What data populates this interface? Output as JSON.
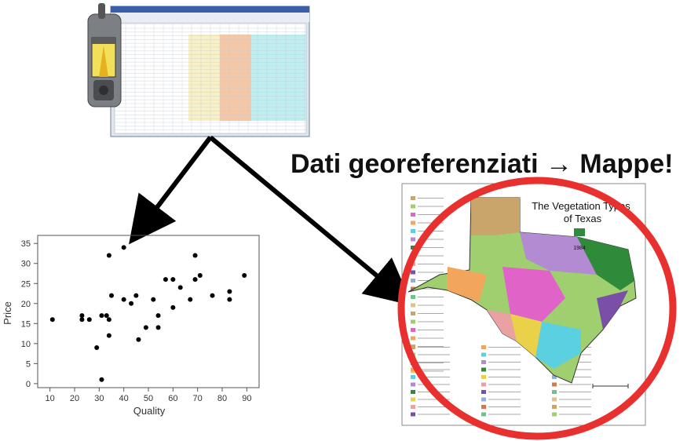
{
  "caption": "Dati georeferenziati → Mappe!",
  "map": {
    "title_line1": "The Vegetation Types",
    "title_line2": "of Texas",
    "year": "1984"
  },
  "chart_data": {
    "type": "scatter",
    "xlabel": "Quality",
    "ylabel": "Price",
    "xlim": [
      5,
      95
    ],
    "ylim": [
      -1,
      37
    ],
    "xticks": [
      10,
      20,
      30,
      40,
      50,
      60,
      70,
      80,
      90
    ],
    "yticks": [
      0,
      5,
      10,
      15,
      20,
      25,
      30,
      35
    ],
    "grid": false,
    "points": [
      [
        11,
        16
      ],
      [
        23,
        17
      ],
      [
        23,
        16
      ],
      [
        26,
        16
      ],
      [
        29,
        9
      ],
      [
        31,
        1
      ],
      [
        31,
        17
      ],
      [
        33,
        17
      ],
      [
        34,
        16
      ],
      [
        34,
        12
      ],
      [
        34,
        32
      ],
      [
        35,
        22
      ],
      [
        40,
        34
      ],
      [
        40,
        21
      ],
      [
        43,
        20
      ],
      [
        45,
        22
      ],
      [
        46,
        11
      ],
      [
        49,
        14
      ],
      [
        52,
        21
      ],
      [
        54,
        17
      ],
      [
        54,
        14
      ],
      [
        57,
        26
      ],
      [
        60,
        26
      ],
      [
        60,
        19
      ],
      [
        63,
        24
      ],
      [
        67,
        21
      ],
      [
        69,
        32
      ],
      [
        69,
        26
      ],
      [
        71,
        27
      ],
      [
        76,
        22
      ],
      [
        83,
        23
      ],
      [
        83,
        21
      ],
      [
        89,
        27
      ]
    ]
  },
  "colors": {
    "arrow": "#000000",
    "circle": "#e8302f",
    "points": "#000000"
  }
}
